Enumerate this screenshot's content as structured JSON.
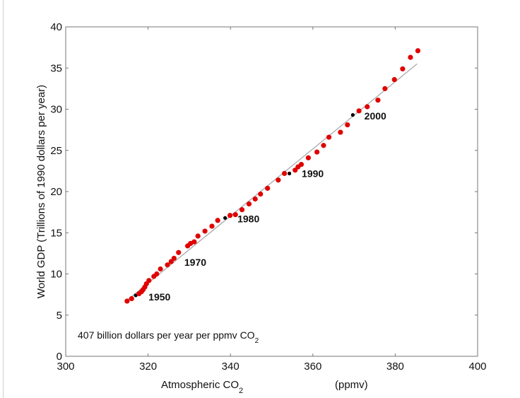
{
  "chart_data": {
    "type": "scatter",
    "title": "",
    "xlabel": "Atmospheric CO",
    "xlabel_sub": "2",
    "xlabel_unit": "(ppmv)",
    "ylabel": "World GDP (Trillions of 1990 dollars per year)",
    "xlim": [
      300,
      400
    ],
    "ylim": [
      0,
      40
    ],
    "xticks": [
      "300",
      "320",
      "340",
      "360",
      "380",
      "400"
    ],
    "yticks": [
      "0",
      "5",
      "10",
      "15",
      "20",
      "25",
      "30",
      "35",
      "40"
    ],
    "grid": false,
    "annotation": "407 billion dollars per year per ppmv CO",
    "annotation_sub": "2",
    "fit_line": {
      "x": [
        314.9,
        385.3
      ],
      "y": [
        6.8,
        35.5
      ],
      "slope": 0.407,
      "color": "#aaaaaa"
    },
    "point_color": "#e00000",
    "highlight_color": "#000000",
    "points": [
      {
        "x": 314.9,
        "y": 6.7
      },
      {
        "x": 316.0,
        "y": 7.0
      },
      {
        "x": 317.0,
        "y": 7.4,
        "h": true
      },
      {
        "x": 317.8,
        "y": 7.6
      },
      {
        "x": 318.4,
        "y": 7.85
      },
      {
        "x": 318.8,
        "y": 8.1
      },
      {
        "x": 319.2,
        "y": 8.4
      },
      {
        "x": 319.6,
        "y": 8.8
      },
      {
        "x": 320.2,
        "y": 9.2
      },
      {
        "x": 321.4,
        "y": 9.7
      },
      {
        "x": 322.1,
        "y": 10.0
      },
      {
        "x": 323.0,
        "y": 10.6
      },
      {
        "x": 324.7,
        "y": 11.1
      },
      {
        "x": 325.6,
        "y": 11.5
      },
      {
        "x": 326.3,
        "y": 11.9
      },
      {
        "x": 327.4,
        "y": 12.6
      },
      {
        "x": 329.6,
        "y": 13.4
      },
      {
        "x": 330.3,
        "y": 13.7
      },
      {
        "x": 331.2,
        "y": 13.9
      },
      {
        "x": 332.1,
        "y": 14.6
      },
      {
        "x": 333.8,
        "y": 15.2
      },
      {
        "x": 335.5,
        "y": 15.8
      },
      {
        "x": 336.9,
        "y": 16.5
      },
      {
        "x": 338.7,
        "y": 16.8,
        "h": true
      },
      {
        "x": 339.9,
        "y": 17.1
      },
      {
        "x": 341.2,
        "y": 17.2
      },
      {
        "x": 342.8,
        "y": 17.8
      },
      {
        "x": 344.5,
        "y": 18.5
      },
      {
        "x": 346.0,
        "y": 19.1
      },
      {
        "x": 347.3,
        "y": 19.7
      },
      {
        "x": 349.0,
        "y": 20.4
      },
      {
        "x": 351.6,
        "y": 21.4
      },
      {
        "x": 353.1,
        "y": 22.2
      },
      {
        "x": 354.3,
        "y": 22.2,
        "h": true
      },
      {
        "x": 355.7,
        "y": 22.6
      },
      {
        "x": 356.4,
        "y": 23.0
      },
      {
        "x": 357.2,
        "y": 23.3
      },
      {
        "x": 358.9,
        "y": 24.1
      },
      {
        "x": 361.0,
        "y": 24.8
      },
      {
        "x": 362.6,
        "y": 25.6
      },
      {
        "x": 363.9,
        "y": 26.6
      },
      {
        "x": 366.7,
        "y": 27.2
      },
      {
        "x": 368.4,
        "y": 28.1
      },
      {
        "x": 369.7,
        "y": 29.3,
        "h": true
      },
      {
        "x": 371.2,
        "y": 29.8
      },
      {
        "x": 373.2,
        "y": 30.3
      },
      {
        "x": 375.8,
        "y": 31.1
      },
      {
        "x": 377.5,
        "y": 32.5
      },
      {
        "x": 379.8,
        "y": 33.6
      },
      {
        "x": 381.8,
        "y": 34.9
      },
      {
        "x": 383.7,
        "y": 36.3
      },
      {
        "x": 385.5,
        "y": 37.1
      }
    ],
    "year_labels": [
      {
        "text": "1950",
        "x": 320.1,
        "y": 7.2
      },
      {
        "text": "1970",
        "x": 328.8,
        "y": 11.4
      },
      {
        "text": "1980",
        "x": 341.7,
        "y": 16.7
      },
      {
        "text": "1990",
        "x": 357.3,
        "y": 22.2
      },
      {
        "text": "2000",
        "x": 372.5,
        "y": 29.2
      }
    ]
  }
}
